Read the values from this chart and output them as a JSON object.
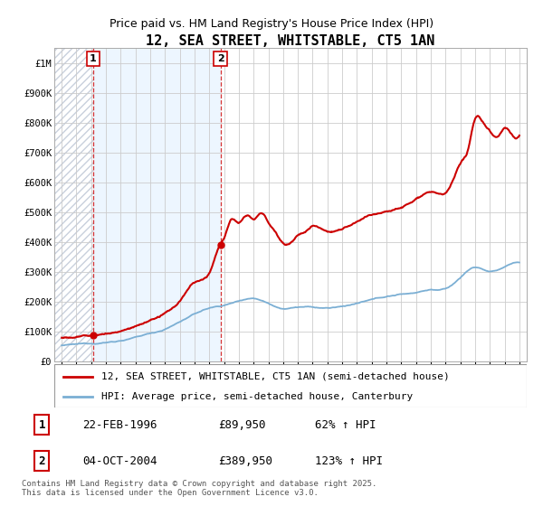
{
  "title": "12, SEA STREET, WHITSTABLE, CT5 1AN",
  "subtitle": "Price paid vs. HM Land Registry's House Price Index (HPI)",
  "legend_line1": "12, SEA STREET, WHITSTABLE, CT5 1AN (semi-detached house)",
  "legend_line2": "HPI: Average price, semi-detached house, Canterbury",
  "footnote": "Contains HM Land Registry data © Crown copyright and database right 2025.\nThis data is licensed under the Open Government Licence v3.0.",
  "transaction1_label": "1",
  "transaction1_date": "22-FEB-1996",
  "transaction1_price": "£89,950",
  "transaction1_hpi": "62% ↑ HPI",
  "transaction2_label": "2",
  "transaction2_date": "04-OCT-2004",
  "transaction2_price": "£389,950",
  "transaction2_hpi": "123% ↑ HPI",
  "transaction1_x": 1996.13,
  "transaction1_y": 89950,
  "transaction2_x": 2004.75,
  "transaction2_y": 389950,
  "price_color": "#cc0000",
  "hpi_color": "#7bafd4",
  "vline_color": "#cc0000",
  "background_color": "#ffffff",
  "grid_color": "#cccccc",
  "shaded_color": "#ddeeff",
  "hatch_color": "#d0d8e8",
  "ylim": [
    0,
    1050000
  ],
  "xlim": [
    1993.5,
    2025.5
  ],
  "yticks": [
    0,
    100000,
    200000,
    300000,
    400000,
    500000,
    600000,
    700000,
    800000,
    900000,
    1000000
  ],
  "ytick_labels": [
    "£0",
    "£100K",
    "£200K",
    "£300K",
    "£400K",
    "£500K",
    "£600K",
    "£700K",
    "£800K",
    "£900K",
    "£1M"
  ],
  "xticks": [
    1994,
    1995,
    1996,
    1997,
    1998,
    1999,
    2000,
    2001,
    2002,
    2003,
    2004,
    2005,
    2006,
    2007,
    2008,
    2009,
    2010,
    2011,
    2012,
    2013,
    2014,
    2015,
    2016,
    2017,
    2018,
    2019,
    2020,
    2021,
    2022,
    2023,
    2024,
    2025
  ],
  "fig_width": 6.0,
  "fig_height": 5.6,
  "dpi": 100
}
